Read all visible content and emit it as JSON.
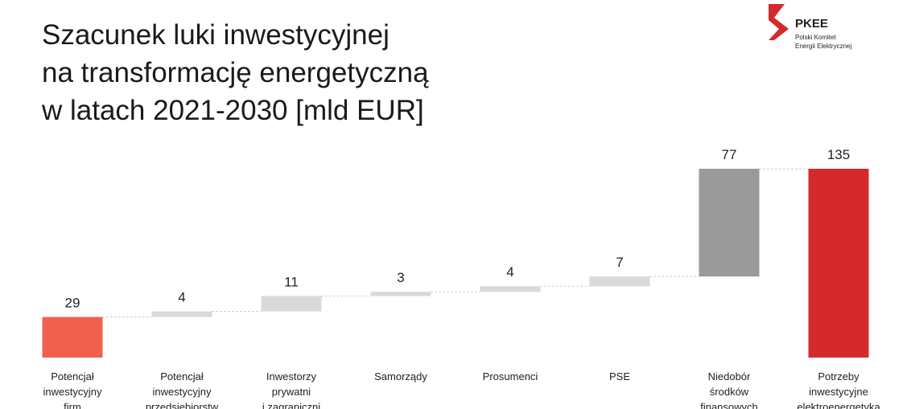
{
  "chart_data": {
    "type": "waterfall",
    "title": [
      "Szacunek luki inwestycyjnej",
      "na transformację energetyczną",
      "w latach 2021-2030 [mld EUR]"
    ],
    "logo": {
      "name": "PKEE",
      "lines": [
        "Polski Komitet",
        "Energii Elektrycznej"
      ]
    },
    "categories": [
      [
        "Potencjał",
        "inwestycyjny",
        "firm"
      ],
      [
        "Potencjał",
        "inwestycyjny",
        "przedsiębiorstw"
      ],
      [
        "Inwestorzy",
        "prywatni",
        "i zagraniczni"
      ],
      [
        "Samorządy"
      ],
      [
        "Prosumenci"
      ],
      [
        "PSE"
      ],
      [
        "Niedobór",
        "środków",
        "finansowych"
      ],
      [
        "Potrzeby",
        "inwestycyjne",
        "elektroenergetyka"
      ]
    ],
    "values": [
      29,
      4,
      11,
      3,
      4,
      7,
      77,
      135
    ],
    "colors": [
      "#f0604d",
      "#d9d9d9",
      "#d9d9d9",
      "#d9d9d9",
      "#d9d9d9",
      "#d9d9d9",
      "#9a9a9a",
      "#d42a2e"
    ],
    "total_last": true
  }
}
